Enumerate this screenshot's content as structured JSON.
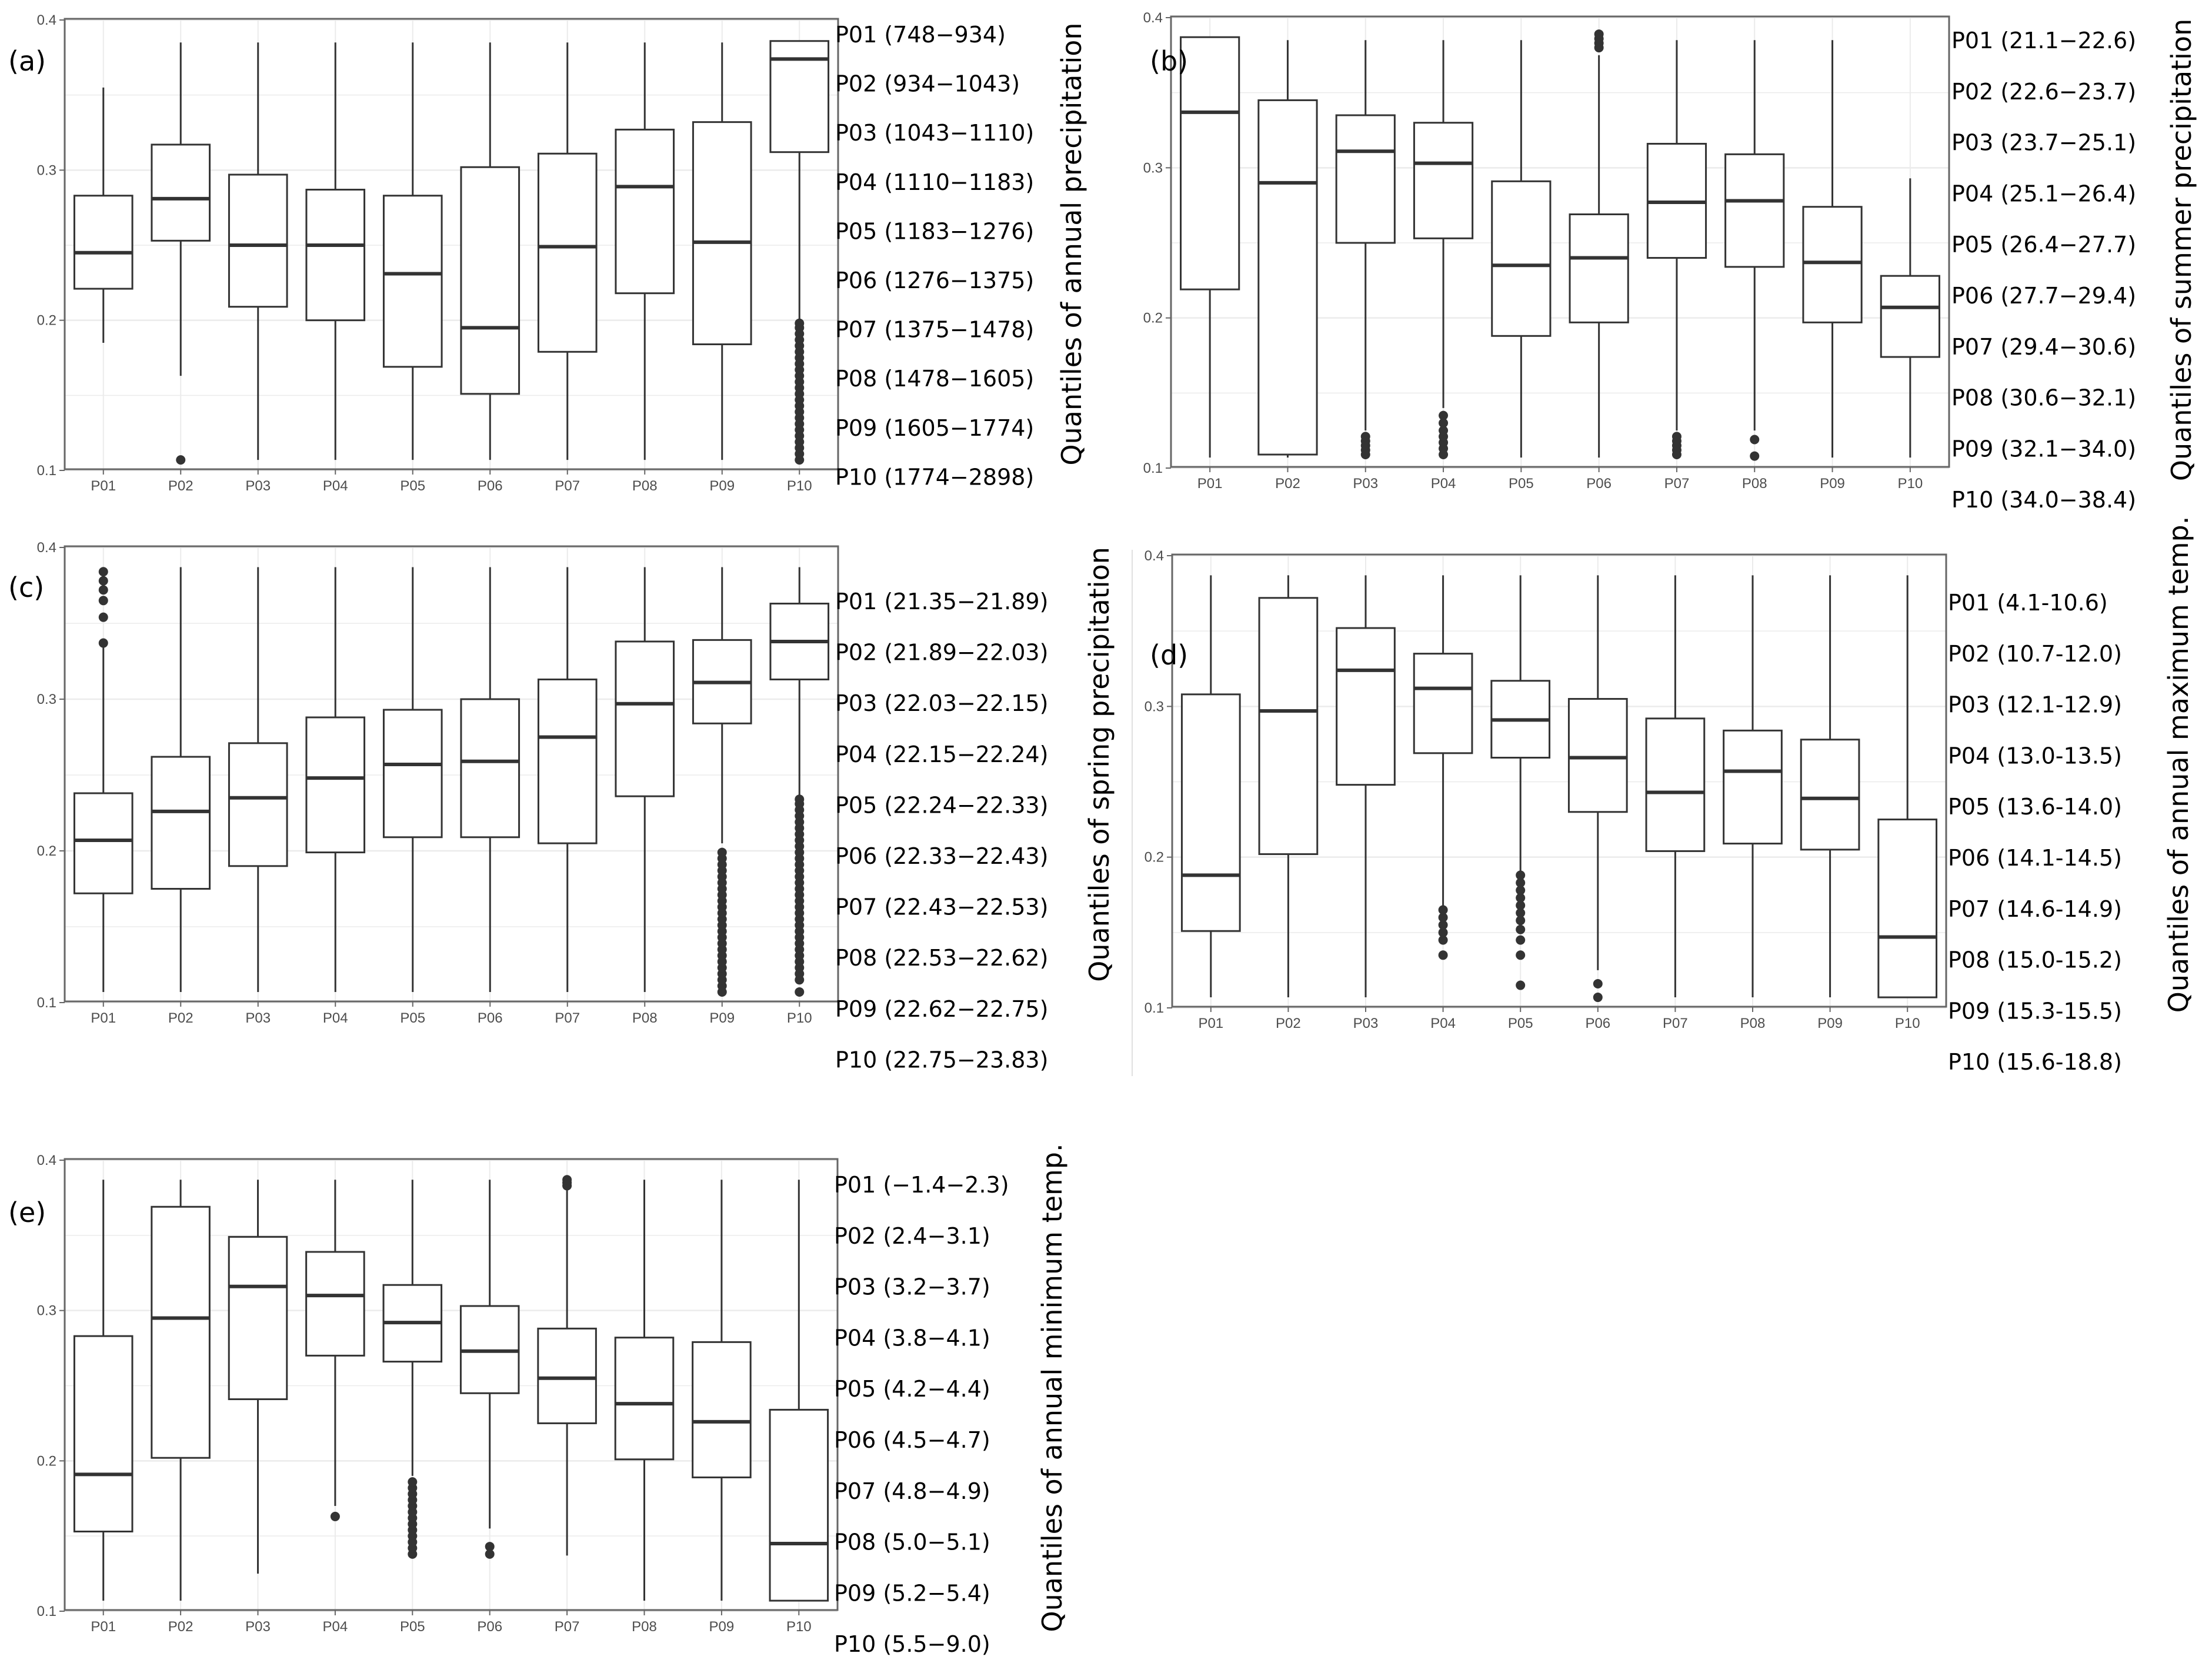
{
  "figure": {
    "y_axis": {
      "ylim": [
        0.1,
        0.4
      ],
      "ticks": [
        0.1,
        0.2,
        0.3,
        0.4
      ]
    },
    "categories": [
      "P01",
      "P02",
      "P03",
      "P04",
      "P05",
      "P06",
      "P07",
      "P08",
      "P09",
      "P10"
    ]
  },
  "chart_data": [
    {
      "type": "box",
      "panel_label": "(a)",
      "title": "",
      "xlabel": "",
      "ylabel": "Quantiles of annual precipitation",
      "ylim": [
        0.1,
        0.4
      ],
      "yticks": [
        "0.1",
        "0.2",
        "0.3",
        "0.4"
      ],
      "categories": [
        "P01",
        "P02",
        "P03",
        "P04",
        "P05",
        "P06",
        "P07",
        "P08",
        "P09",
        "P10"
      ],
      "quantile_legend": [
        "P01 (748−934)",
        "P02 (934−1043)",
        "P03 (1043−1110)",
        "P04 (1110−1183)",
        "P05 (1183−1276)",
        "P06 (1276−1375)",
        "P07 (1375−1478)",
        "P08 (1478−1605)",
        "P09 (1605−1774)",
        "P10 (1774−2898)"
      ],
      "boxes": [
        {
          "category": "P01",
          "whisker_low": 0.185,
          "q1": 0.221,
          "median": 0.245,
          "q3": 0.283,
          "whisker_high": 0.355,
          "outliers": []
        },
        {
          "category": "P02",
          "whisker_low": 0.163,
          "q1": 0.253,
          "median": 0.281,
          "q3": 0.317,
          "whisker_high": 0.385,
          "outliers": [
            0.107
          ]
        },
        {
          "category": "P03",
          "whisker_low": 0.107,
          "q1": 0.209,
          "median": 0.25,
          "q3": 0.297,
          "whisker_high": 0.385,
          "outliers": []
        },
        {
          "category": "P04",
          "whisker_low": 0.107,
          "q1": 0.2,
          "median": 0.25,
          "q3": 0.287,
          "whisker_high": 0.385,
          "outliers": []
        },
        {
          "category": "P05",
          "whisker_low": 0.107,
          "q1": 0.169,
          "median": 0.231,
          "q3": 0.283,
          "whisker_high": 0.385,
          "outliers": []
        },
        {
          "category": "P06",
          "whisker_low": 0.107,
          "q1": 0.151,
          "median": 0.195,
          "q3": 0.302,
          "whisker_high": 0.385,
          "outliers": []
        },
        {
          "category": "P07",
          "whisker_low": 0.107,
          "q1": 0.179,
          "median": 0.249,
          "q3": 0.311,
          "whisker_high": 0.385,
          "outliers": []
        },
        {
          "category": "P08",
          "whisker_low": 0.107,
          "q1": 0.218,
          "median": 0.289,
          "q3": 0.327,
          "whisker_high": 0.385,
          "outliers": []
        },
        {
          "category": "P09",
          "whisker_low": 0.107,
          "q1": 0.184,
          "median": 0.252,
          "q3": 0.332,
          "whisker_high": 0.385,
          "outliers": []
        },
        {
          "category": "P10",
          "whisker_low": 0.2,
          "q1": 0.312,
          "median": 0.374,
          "q3": 0.386,
          "whisker_high": 0.386,
          "outliers": [
            0.107,
            0.111,
            0.115,
            0.119,
            0.123,
            0.127,
            0.131,
            0.135,
            0.139,
            0.143,
            0.147,
            0.151,
            0.155,
            0.159,
            0.163,
            0.167,
            0.171,
            0.175,
            0.179,
            0.183,
            0.187,
            0.191,
            0.195,
            0.198
          ]
        }
      ]
    },
    {
      "type": "box",
      "panel_label": "(b)",
      "title": "",
      "xlabel": "",
      "ylabel": "Quantiles of summer precipitation",
      "ylim": [
        0.1,
        0.4
      ],
      "yticks": [
        "0.1",
        "0.2",
        "0.3",
        "0.4"
      ],
      "categories": [
        "P01",
        "P02",
        "P03",
        "P04",
        "P05",
        "P06",
        "P07",
        "P08",
        "P09",
        "P10"
      ],
      "quantile_legend": [
        "P01 (21.1−22.6)",
        "P02 (22.6−23.7)",
        "P03 (23.7−25.1)",
        "P04 (25.1−26.4)",
        "P05 (26.4−27.7)",
        "P06 (27.7−29.4)",
        "P07 (29.4−30.6)",
        "P08 (30.6−32.1)",
        "P09 (32.1−34.0)",
        "P10 (34.0−38.4)"
      ],
      "boxes": [
        {
          "category": "P01",
          "whisker_low": 0.107,
          "q1": 0.219,
          "median": 0.337,
          "q3": 0.387,
          "whisker_high": 0.387,
          "outliers": []
        },
        {
          "category": "P02",
          "whisker_low": 0.107,
          "q1": 0.109,
          "median": 0.29,
          "q3": 0.345,
          "whisker_high": 0.385,
          "outliers": []
        },
        {
          "category": "P03",
          "whisker_low": 0.125,
          "q1": 0.25,
          "median": 0.311,
          "q3": 0.335,
          "whisker_high": 0.385,
          "outliers": [
            0.109,
            0.112,
            0.115,
            0.118,
            0.121
          ]
        },
        {
          "category": "P04",
          "whisker_low": 0.14,
          "q1": 0.253,
          "median": 0.303,
          "q3": 0.33,
          "whisker_high": 0.385,
          "outliers": [
            0.109,
            0.113,
            0.117,
            0.121,
            0.125,
            0.13,
            0.135
          ]
        },
        {
          "category": "P05",
          "whisker_low": 0.107,
          "q1": 0.188,
          "median": 0.235,
          "q3": 0.291,
          "whisker_high": 0.385,
          "outliers": []
        },
        {
          "category": "P06",
          "whisker_low": 0.107,
          "q1": 0.197,
          "median": 0.24,
          "q3": 0.269,
          "whisker_high": 0.375,
          "outliers": [
            0.38,
            0.383,
            0.386,
            0.389
          ]
        },
        {
          "category": "P07",
          "whisker_low": 0.125,
          "q1": 0.24,
          "median": 0.277,
          "q3": 0.316,
          "whisker_high": 0.385,
          "outliers": [
            0.109,
            0.112,
            0.115,
            0.118,
            0.121
          ]
        },
        {
          "category": "P08",
          "whisker_low": 0.125,
          "q1": 0.234,
          "median": 0.278,
          "q3": 0.309,
          "whisker_high": 0.385,
          "outliers": [
            0.108,
            0.119
          ]
        },
        {
          "category": "P09",
          "whisker_low": 0.107,
          "q1": 0.197,
          "median": 0.237,
          "q3": 0.274,
          "whisker_high": 0.385,
          "outliers": []
        },
        {
          "category": "P10",
          "whisker_low": 0.107,
          "q1": 0.174,
          "median": 0.207,
          "q3": 0.228,
          "whisker_high": 0.293,
          "outliers": []
        }
      ]
    },
    {
      "type": "box",
      "panel_label": "(c)",
      "title": "",
      "xlabel": "",
      "ylabel": "Quantiles of spring precipitation",
      "ylim": [
        0.1,
        0.4
      ],
      "yticks": [
        "0.1",
        "0.2",
        "0.3",
        "0.4"
      ],
      "categories": [
        "P01",
        "P02",
        "P03",
        "P04",
        "P05",
        "P06",
        "P07",
        "P08",
        "P09",
        "P10"
      ],
      "quantile_legend": [
        "P01 (21.35−21.89)",
        "P02 (21.89−22.03)",
        "P03 (22.03−22.15)",
        "P04 (22.15−22.24)",
        "P05 (22.24−22.33)",
        "P06 (22.33−22.43)",
        "P07 (22.43−22.53)",
        "P08 (22.53−22.62)",
        "P09 (22.62−22.75)",
        "P10 (22.75−23.83)"
      ],
      "boxes": [
        {
          "category": "P01",
          "whisker_low": 0.107,
          "q1": 0.172,
          "median": 0.207,
          "q3": 0.238,
          "whisker_high": 0.335,
          "outliers": [
            0.337,
            0.354,
            0.365,
            0.372,
            0.378,
            0.384
          ]
        },
        {
          "category": "P02",
          "whisker_low": 0.107,
          "q1": 0.175,
          "median": 0.226,
          "q3": 0.262,
          "whisker_high": 0.387,
          "outliers": []
        },
        {
          "category": "P03",
          "whisker_low": 0.107,
          "q1": 0.19,
          "median": 0.235,
          "q3": 0.271,
          "whisker_high": 0.387,
          "outliers": []
        },
        {
          "category": "P04",
          "whisker_low": 0.107,
          "q1": 0.199,
          "median": 0.248,
          "q3": 0.288,
          "whisker_high": 0.387,
          "outliers": []
        },
        {
          "category": "P05",
          "whisker_low": 0.107,
          "q1": 0.209,
          "median": 0.257,
          "q3": 0.293,
          "whisker_high": 0.387,
          "outliers": []
        },
        {
          "category": "P06",
          "whisker_low": 0.107,
          "q1": 0.209,
          "median": 0.259,
          "q3": 0.3,
          "whisker_high": 0.387,
          "outliers": []
        },
        {
          "category": "P07",
          "whisker_low": 0.107,
          "q1": 0.205,
          "median": 0.275,
          "q3": 0.313,
          "whisker_high": 0.387,
          "outliers": []
        },
        {
          "category": "P08",
          "whisker_low": 0.107,
          "q1": 0.236,
          "median": 0.297,
          "q3": 0.338,
          "whisker_high": 0.387,
          "outliers": []
        },
        {
          "category": "P09",
          "whisker_low": 0.205,
          "q1": 0.284,
          "median": 0.311,
          "q3": 0.339,
          "whisker_high": 0.387,
          "outliers": [
            0.107,
            0.111,
            0.115,
            0.119,
            0.123,
            0.127,
            0.131,
            0.135,
            0.139,
            0.143,
            0.147,
            0.151,
            0.155,
            0.159,
            0.163,
            0.167,
            0.171,
            0.175,
            0.179,
            0.183,
            0.187,
            0.191,
            0.195,
            0.199
          ]
        },
        {
          "category": "P10",
          "whisker_low": 0.236,
          "q1": 0.313,
          "median": 0.338,
          "q3": 0.363,
          "whisker_high": 0.387,
          "outliers": [
            0.107,
            0.115,
            0.119,
            0.123,
            0.127,
            0.131,
            0.135,
            0.139,
            0.143,
            0.147,
            0.151,
            0.155,
            0.159,
            0.163,
            0.167,
            0.171,
            0.175,
            0.179,
            0.183,
            0.187,
            0.191,
            0.195,
            0.199,
            0.203,
            0.207,
            0.211,
            0.215,
            0.219,
            0.223,
            0.227,
            0.231,
            0.234
          ]
        }
      ]
    },
    {
      "type": "box",
      "panel_label": "(d)",
      "title": "",
      "xlabel": "",
      "ylabel": "Quantiles of annual maximum temp.",
      "ylim": [
        0.1,
        0.4
      ],
      "yticks": [
        "0.1",
        "0.2",
        "0.3",
        "0.4"
      ],
      "categories": [
        "P01",
        "P02",
        "P03",
        "P04",
        "P05",
        "P06",
        "P07",
        "P08",
        "P09",
        "P10"
      ],
      "quantile_legend": [
        "P01 (4.1-10.6)",
        "P02 (10.7-12.0)",
        "P03 (12.1-12.9)",
        "P04 (13.0-13.5)",
        "P05 (13.6-14.0)",
        "P06 (14.1-14.5)",
        "P07 (14.6-14.9)",
        "P08 (15.0-15.2)",
        "P09 (15.3-15.5)",
        "P10 (15.6-18.8)"
      ],
      "boxes": [
        {
          "category": "P01",
          "whisker_low": 0.107,
          "q1": 0.151,
          "median": 0.188,
          "q3": 0.308,
          "whisker_high": 0.387,
          "outliers": []
        },
        {
          "category": "P02",
          "whisker_low": 0.107,
          "q1": 0.202,
          "median": 0.297,
          "q3": 0.372,
          "whisker_high": 0.387,
          "outliers": []
        },
        {
          "category": "P03",
          "whisker_low": 0.107,
          "q1": 0.248,
          "median": 0.324,
          "q3": 0.352,
          "whisker_high": 0.387,
          "outliers": []
        },
        {
          "category": "P04",
          "whisker_low": 0.168,
          "q1": 0.269,
          "median": 0.312,
          "q3": 0.335,
          "whisker_high": 0.387,
          "outliers": [
            0.135,
            0.145,
            0.15,
            0.155,
            0.16,
            0.165
          ]
        },
        {
          "category": "P05",
          "whisker_low": 0.19,
          "q1": 0.266,
          "median": 0.291,
          "q3": 0.317,
          "whisker_high": 0.387,
          "outliers": [
            0.115,
            0.135,
            0.145,
            0.152,
            0.158,
            0.163,
            0.168,
            0.173,
            0.178,
            0.183,
            0.188
          ]
        },
        {
          "category": "P06",
          "whisker_low": 0.125,
          "q1": 0.23,
          "median": 0.266,
          "q3": 0.305,
          "whisker_high": 0.387,
          "outliers": [
            0.107,
            0.116
          ]
        },
        {
          "category": "P07",
          "whisker_low": 0.107,
          "q1": 0.204,
          "median": 0.243,
          "q3": 0.292,
          "whisker_high": 0.387,
          "outliers": []
        },
        {
          "category": "P08",
          "whisker_low": 0.107,
          "q1": 0.209,
          "median": 0.257,
          "q3": 0.284,
          "whisker_high": 0.387,
          "outliers": []
        },
        {
          "category": "P09",
          "whisker_low": 0.107,
          "q1": 0.205,
          "median": 0.239,
          "q3": 0.278,
          "whisker_high": 0.387,
          "outliers": []
        },
        {
          "category": "P10",
          "whisker_low": 0.107,
          "q1": 0.107,
          "median": 0.147,
          "q3": 0.225,
          "whisker_high": 0.387,
          "outliers": []
        }
      ]
    },
    {
      "type": "box",
      "panel_label": "(e)",
      "title": "",
      "xlabel": "",
      "ylabel": "Quantiles of annual minimum temp.",
      "ylim": [
        0.1,
        0.4
      ],
      "yticks": [
        "0.1",
        "0.2",
        "0.3",
        "0.4"
      ],
      "categories": [
        "P01",
        "P02",
        "P03",
        "P04",
        "P05",
        "P06",
        "P07",
        "P08",
        "P09",
        "P10"
      ],
      "quantile_legend": [
        "P01 (−1.4−2.3)",
        "P02 (2.4−3.1)",
        "P03 (3.2−3.7)",
        "P04 (3.8−4.1)",
        "P05 (4.2−4.4)",
        "P06 (4.5−4.7)",
        "P07 (4.8−4.9)",
        "P08 (5.0−5.1)",
        "P09 (5.2−5.4)",
        "P10 (5.5−9.0)"
      ],
      "boxes": [
        {
          "category": "P01",
          "whisker_low": 0.107,
          "q1": 0.153,
          "median": 0.191,
          "q3": 0.283,
          "whisker_high": 0.387,
          "outliers": []
        },
        {
          "category": "P02",
          "whisker_low": 0.107,
          "q1": 0.202,
          "median": 0.295,
          "q3": 0.369,
          "whisker_high": 0.387,
          "outliers": []
        },
        {
          "category": "P03",
          "whisker_low": 0.125,
          "q1": 0.241,
          "median": 0.316,
          "q3": 0.349,
          "whisker_high": 0.387,
          "outliers": []
        },
        {
          "category": "P04",
          "whisker_low": 0.17,
          "q1": 0.27,
          "median": 0.31,
          "q3": 0.339,
          "whisker_high": 0.387,
          "outliers": [
            0.163
          ]
        },
        {
          "category": "P05",
          "whisker_low": 0.19,
          "q1": 0.266,
          "median": 0.292,
          "q3": 0.317,
          "whisker_high": 0.387,
          "outliers": [
            0.138,
            0.142,
            0.146,
            0.15,
            0.154,
            0.158,
            0.162,
            0.166,
            0.17,
            0.174,
            0.178,
            0.182,
            0.186
          ]
        },
        {
          "category": "P06",
          "whisker_low": 0.155,
          "q1": 0.245,
          "median": 0.273,
          "q3": 0.303,
          "whisker_high": 0.387,
          "outliers": [
            0.138,
            0.143
          ]
        },
        {
          "category": "P07",
          "whisker_low": 0.137,
          "q1": 0.225,
          "median": 0.255,
          "q3": 0.288,
          "whisker_high": 0.38,
          "outliers": [
            0.383,
            0.385,
            0.387
          ]
        },
        {
          "category": "P08",
          "whisker_low": 0.107,
          "q1": 0.201,
          "median": 0.238,
          "q3": 0.282,
          "whisker_high": 0.387,
          "outliers": []
        },
        {
          "category": "P09",
          "whisker_low": 0.107,
          "q1": 0.189,
          "median": 0.226,
          "q3": 0.279,
          "whisker_high": 0.387,
          "outliers": []
        },
        {
          "category": "P10",
          "whisker_low": 0.107,
          "q1": 0.107,
          "median": 0.145,
          "q3": 0.234,
          "whisker_high": 0.387,
          "outliers": []
        }
      ]
    }
  ]
}
